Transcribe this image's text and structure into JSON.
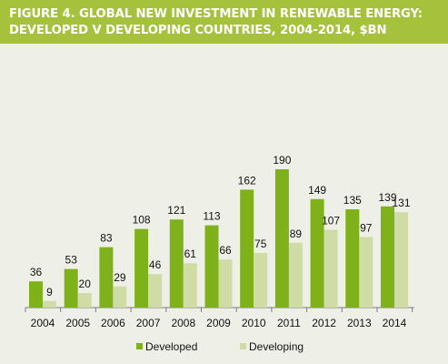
{
  "title": {
    "line1": "FIGURE 4. GLOBAL NEW INVESTMENT IN RENEWABLE ENERGY:",
    "line2": "DEVELOPED V DEVELOPING COUNTRIES, 2004-2014, $BN"
  },
  "colors": {
    "header": "#a6c13c",
    "background": "#eef0e8",
    "developed": "#7fb21a",
    "developing": "#cfdca6"
  },
  "chart_data": {
    "type": "bar",
    "title": "FIGURE 4. GLOBAL NEW INVESTMENT IN RENEWABLE ENERGY: DEVELOPED V DEVELOPING COUNTRIES, 2004-2014, $BN",
    "xlabel": "",
    "ylabel": "",
    "ylim": [
      0,
      200
    ],
    "grid": false,
    "legend_position": "bottom",
    "categories": [
      "2004",
      "2005",
      "2006",
      "2007",
      "2008",
      "2009",
      "2010",
      "2011",
      "2012",
      "2013",
      "2014"
    ],
    "series": [
      {
        "name": "Developed",
        "values": [
          36,
          53,
          83,
          108,
          121,
          113,
          162,
          190,
          149,
          135,
          139
        ]
      },
      {
        "name": "Developing",
        "values": [
          9,
          20,
          29,
          46,
          61,
          66,
          75,
          89,
          107,
          97,
          131
        ]
      }
    ]
  }
}
